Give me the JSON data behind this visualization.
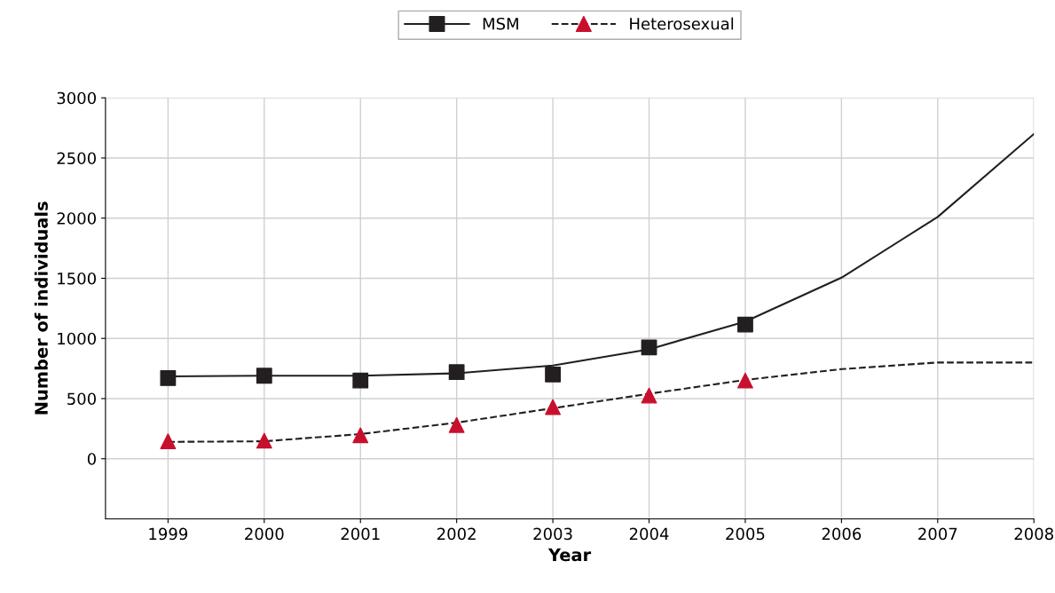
{
  "chart_data": {
    "type": "line",
    "xlabel": "Year",
    "ylabel": "Number of individuals",
    "x": [
      1999,
      2000,
      2001,
      2002,
      2003,
      2004,
      2005,
      2006,
      2007,
      2008
    ],
    "series": [
      {
        "name": "MSM",
        "color": "#231f20",
        "line_style": "solid",
        "values": [
          685,
          690,
          690,
          710,
          775,
          910,
          1140,
          1505,
          2010,
          2700
        ]
      },
      {
        "type": "scatter",
        "color": "#231f20",
        "marker": "square",
        "x": [
          1999,
          2000,
          2001,
          2002,
          2003,
          2004,
          2005
        ],
        "values": [
          670,
          690,
          650,
          720,
          700,
          925,
          1115
        ]
      },
      {
        "name": "Heterosexual",
        "color": "#231f20",
        "line_style": "dashed",
        "values": [
          140,
          145,
          205,
          300,
          420,
          540,
          655,
          745,
          800,
          800
        ]
      },
      {
        "type": "scatter",
        "color": "#c8102e",
        "marker": "triangle",
        "x": [
          1999,
          2000,
          2001,
          2002,
          2003,
          2004,
          2005
        ],
        "values": [
          145,
          150,
          195,
          280,
          430,
          525,
          650
        ]
      }
    ],
    "xlim": [
      1998.35,
      2008
    ],
    "xticks": [
      1999,
      2000,
      2001,
      2002,
      2003,
      2004,
      2005,
      2006,
      2007,
      2008
    ],
    "ylim": [
      -500,
      3000
    ],
    "yticks": [
      0,
      500,
      1000,
      1500,
      2000,
      2500,
      3000
    ],
    "grid": true,
    "legend": "top"
  }
}
